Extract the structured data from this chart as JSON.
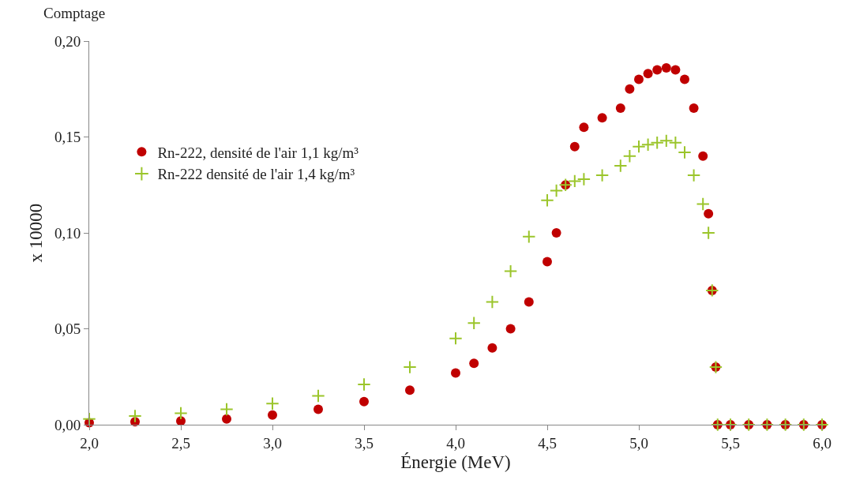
{
  "chart_data": {
    "type": "scatter",
    "title": "Comptage",
    "ylabel": "x 10000",
    "xlabel": "Énergie (MeV)",
    "xlim": [
      2.0,
      6.0
    ],
    "xticks": [
      {
        "value": 2.0,
        "label": "2,0"
      },
      {
        "value": 2.5,
        "label": "2,5"
      },
      {
        "value": 3.0,
        "label": "3,0"
      },
      {
        "value": 3.5,
        "label": "3,5"
      },
      {
        "value": 4.0,
        "label": "4,0"
      },
      {
        "value": 4.5,
        "label": "4,5"
      },
      {
        "value": 5.0,
        "label": "5,0"
      },
      {
        "value": 5.5,
        "label": "5,5"
      },
      {
        "value": 6.0,
        "label": "6,0"
      }
    ],
    "ylim": [
      0,
      0.2
    ],
    "yticks": [
      {
        "value": 0,
        "label": "0,00"
      },
      {
        "value": 0.05,
        "label": "0,05"
      },
      {
        "value": 0.1,
        "label": "0,10"
      },
      {
        "value": 0.15,
        "label": "0,15"
      },
      {
        "value": 0.2,
        "label": "0,20"
      }
    ],
    "grid": false,
    "legend": "left",
    "series": [
      {
        "name": "Rn-222, densité de l'air 1,1 kg/m³",
        "color": "#c00000",
        "marker": "circle",
        "x": [
          2.0,
          2.25,
          2.5,
          2.75,
          3.0,
          3.25,
          3.5,
          3.75,
          4.0,
          4.1,
          4.2,
          4.3,
          4.4,
          4.5,
          4.55,
          4.6,
          4.65,
          4.7,
          4.8,
          4.9,
          4.95,
          5.0,
          5.05,
          5.1,
          5.15,
          5.2,
          5.25,
          5.3,
          5.35,
          5.38,
          5.4,
          5.42,
          5.43,
          5.5,
          5.6,
          5.7,
          5.8,
          5.9,
          6.0
        ],
        "values": [
          0.001,
          0.0015,
          0.002,
          0.003,
          0.005,
          0.008,
          0.012,
          0.018,
          0.027,
          0.032,
          0.04,
          0.05,
          0.064,
          0.085,
          0.1,
          0.125,
          0.145,
          0.155,
          0.16,
          0.165,
          0.175,
          0.18,
          0.183,
          0.185,
          0.186,
          0.185,
          0.18,
          0.165,
          0.14,
          0.11,
          0.07,
          0.03,
          0.0,
          0.0,
          0.0,
          0.0,
          0.0,
          0.0,
          0.0
        ]
      },
      {
        "name": "Rn-222 densité de l'air 1,4 kg/m³",
        "color": "#9bc52b",
        "marker": "cross",
        "x": [
          2.0,
          2.25,
          2.5,
          2.75,
          3.0,
          3.25,
          3.5,
          3.75,
          4.0,
          4.1,
          4.2,
          4.3,
          4.4,
          4.5,
          4.55,
          4.6,
          4.65,
          4.7,
          4.8,
          4.9,
          4.95,
          5.0,
          5.05,
          5.1,
          5.15,
          5.2,
          5.25,
          5.3,
          5.35,
          5.38,
          5.4,
          5.42,
          5.43,
          5.5,
          5.6,
          5.7,
          5.8,
          5.9,
          6.0
        ],
        "values": [
          0.003,
          0.0045,
          0.006,
          0.008,
          0.011,
          0.015,
          0.021,
          0.03,
          0.045,
          0.053,
          0.064,
          0.08,
          0.098,
          0.117,
          0.122,
          0.125,
          0.127,
          0.128,
          0.13,
          0.135,
          0.14,
          0.145,
          0.146,
          0.147,
          0.148,
          0.147,
          0.142,
          0.13,
          0.115,
          0.1,
          0.07,
          0.03,
          0.0,
          0.0,
          0.0,
          0.0,
          0.0,
          0.0,
          0.0
        ]
      }
    ]
  }
}
